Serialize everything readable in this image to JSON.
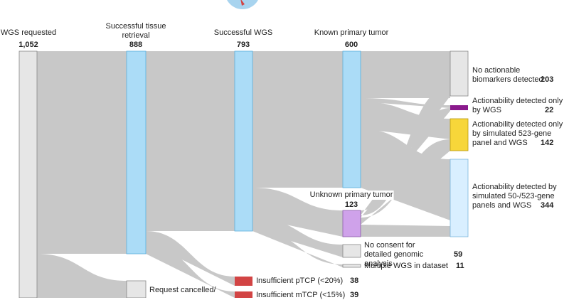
{
  "stages": {
    "requested": {
      "label": "WGS requested",
      "count": "1,052"
    },
    "retrieval": {
      "label": "Successful tissue retrieval",
      "count": "888"
    },
    "wgs": {
      "label": "Successful WGS",
      "count": "793"
    },
    "known": {
      "label": "Known primary tumor",
      "count": "600"
    },
    "unknown": {
      "label": "Unknown primary tumor",
      "count": "123"
    }
  },
  "outcomes": {
    "no_actionable": {
      "label": "No actionable biomarkers detected",
      "count": "203"
    },
    "only_wgs": {
      "label": "Actionability detected only by WGS",
      "count": "22"
    },
    "panel523": {
      "label": "Actionability detected only by simulated 523-gene panel and WGS",
      "count": "142"
    },
    "panel50": {
      "label": "Actionability detected by simulated 50-/523-gene panels and WGS",
      "count": "344"
    }
  },
  "exclusions": {
    "no_consent": {
      "label": "No consent for detailed genomic analysis",
      "count": "59"
    },
    "multiple": {
      "label": "Multiple WGS in dataset",
      "count": "11"
    },
    "ptcp": {
      "label": "Insufficient pTCP (<20%)",
      "count": "38"
    },
    "mtcp": {
      "label": "Insufficient mTCP (<15%)",
      "count": "39"
    },
    "cancelled": {
      "label": "Request cancelled/",
      "count": ""
    }
  },
  "colors": {
    "flow": "#c8c8c8",
    "node_blue": "#abdcf7",
    "node_blue_edge": "#5aaedc",
    "node_gray": "#e6e6e6",
    "node_lightblue": "#d9efff",
    "purple_light": "#cfa2ea",
    "purple_dark": "#8a1a8c",
    "yellow": "#f7d63a",
    "red": "#d24444",
    "badge": "#a8d4ef"
  }
}
